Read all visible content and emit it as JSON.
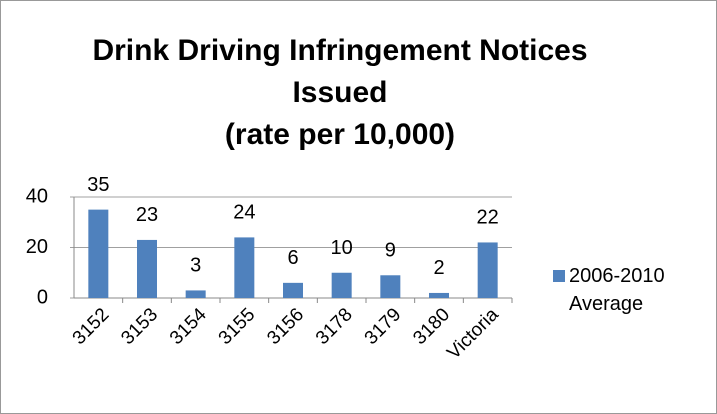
{
  "chart_data": {
    "type": "bar",
    "title": "Drink Driving Infringement Notices Issued",
    "subtitle": "(rate per 10,000)",
    "categories": [
      "3152",
      "3153",
      "3154",
      "3155",
      "3156",
      "3178",
      "3179",
      "3180",
      "Victoria"
    ],
    "series": [
      {
        "name": "2006-2010 Average",
        "color": "#4f81bd",
        "values": [
          35,
          23,
          3,
          24,
          6,
          10,
          9,
          2,
          22
        ]
      }
    ],
    "ylim": [
      0,
      40
    ],
    "yticks": [
      0,
      20,
      40
    ],
    "grid": true,
    "legend": "right"
  }
}
